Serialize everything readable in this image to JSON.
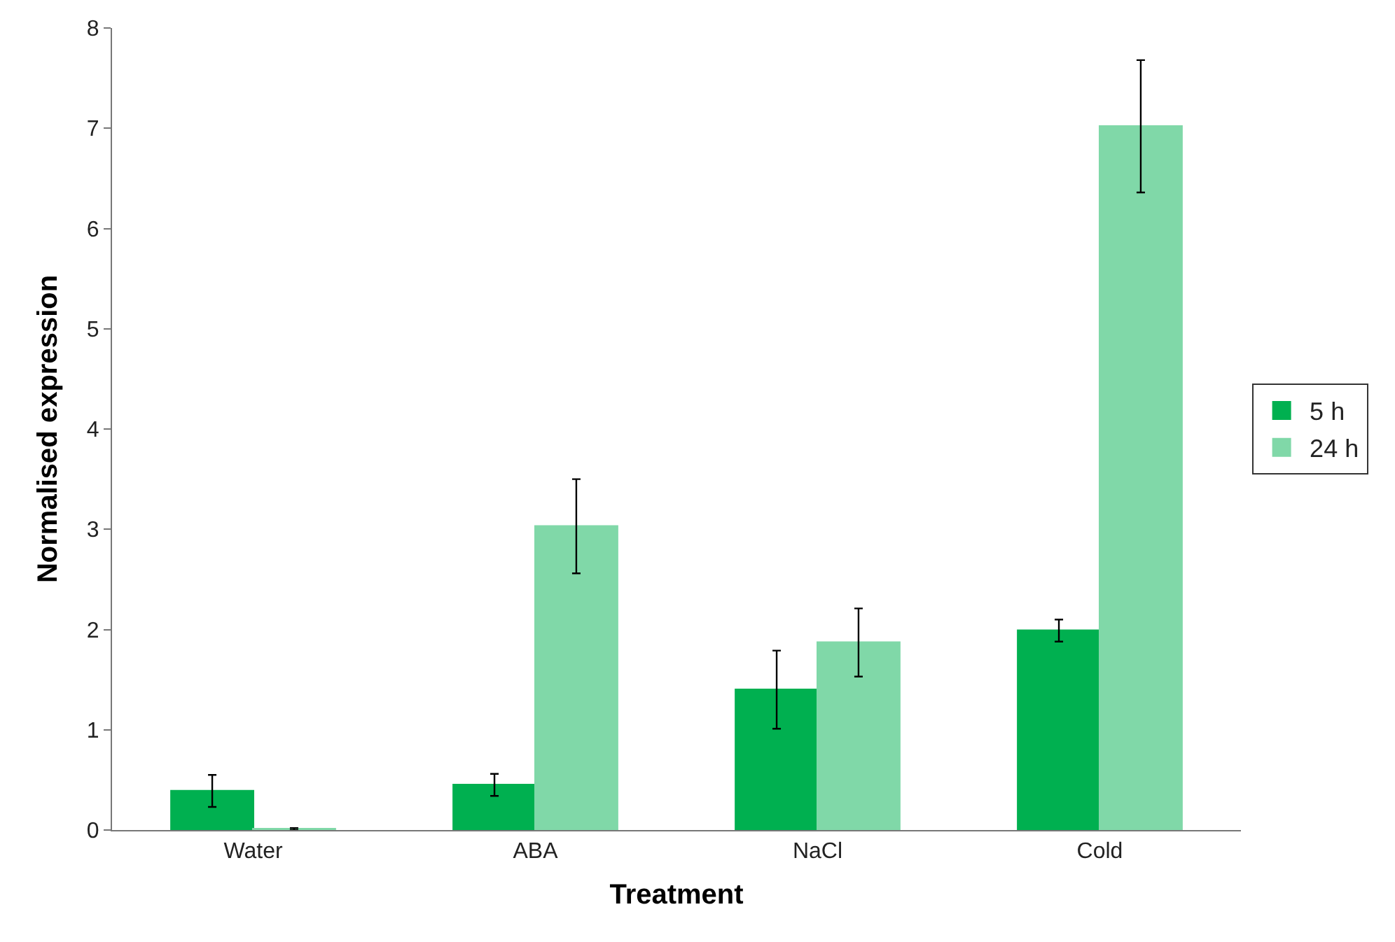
{
  "chart_data": {
    "type": "bar",
    "xlabel": "Treatment",
    "ylabel": "Normalised expression",
    "categories": [
      "Water",
      "ABA",
      "NaCl",
      "Cold"
    ],
    "series": [
      {
        "name": "5 h",
        "color": "#00b050",
        "values": [
          0.39,
          0.45,
          1.4,
          1.99
        ],
        "errors": [
          0.16,
          0.11,
          0.39,
          0.11
        ]
      },
      {
        "name": "24 h",
        "color": "#80d8a8",
        "values": [
          0.01,
          3.03,
          1.87,
          7.02
        ],
        "errors": [
          0.01,
          0.47,
          0.34,
          0.66
        ]
      }
    ],
    "ylim": [
      0,
      8
    ],
    "yticks": [
      0,
      1,
      2,
      3,
      4,
      5,
      6,
      7,
      8
    ],
    "legend": "right"
  }
}
